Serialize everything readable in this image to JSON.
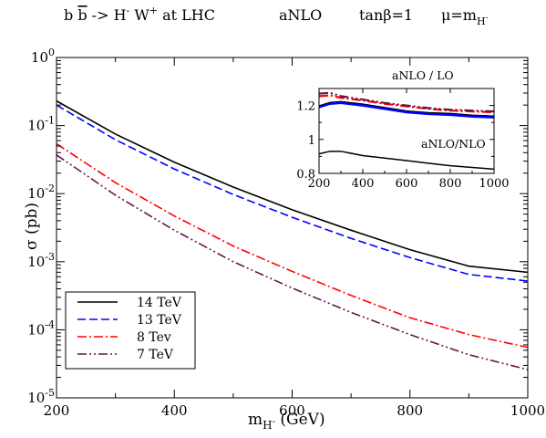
{
  "chart_data": {
    "type": "line",
    "title_parts": [
      {
        "base": "b ",
        "sup": ""
      },
      {
        "base": "b",
        "sup": "",
        "overline": true
      },
      {
        "base": " -> H",
        "sup": "-"
      },
      {
        "base": " W",
        "sup": "+"
      },
      {
        "base": "  at LHC",
        "sup": ""
      }
    ],
    "title_items": [
      "aNLO",
      "tanβ=1"
    ],
    "title_mu": {
      "base": "μ=m",
      "sub": "H",
      "subsup": "-"
    },
    "xlabel": {
      "base": "m",
      "sub": "H",
      "subsup": "-",
      "rest": " (GeV)"
    },
    "ylabel": "σ (pb)",
    "xlim": [
      200,
      1000
    ],
    "ylim": [
      1e-05,
      1
    ],
    "yscale": "log",
    "x_ticks": [
      "200",
      "400",
      "600",
      "800",
      "1000"
    ],
    "y_ticks": [
      {
        "base": "10",
        "exp": "-5"
      },
      {
        "base": "10",
        "exp": "-4"
      },
      {
        "base": "10",
        "exp": "-3"
      },
      {
        "base": "10",
        "exp": "-2"
      },
      {
        "base": "10",
        "exp": "-1"
      },
      {
        "base": "10",
        "exp": "0"
      }
    ],
    "legend_position": "bottom-left",
    "series": [
      {
        "name": "14 TeV",
        "color": "#000000",
        "dash": "solid",
        "x": [
          200,
          300,
          400,
          500,
          600,
          700,
          800,
          900,
          1000
        ],
        "y": [
          0.23,
          0.075,
          0.029,
          0.0125,
          0.0058,
          0.0029,
          0.0015,
          0.00086,
          0.0007
        ]
      },
      {
        "name": "13 TeV",
        "color": "#0000ff",
        "dash": "dashed",
        "x": [
          200,
          300,
          400,
          500,
          600,
          700,
          800,
          900,
          1000
        ],
        "y": [
          0.2,
          0.062,
          0.023,
          0.0097,
          0.0045,
          0.0022,
          0.00115,
          0.00065,
          0.00052
        ]
      },
      {
        "name": "8 Tev",
        "color": "#ff0000",
        "dash": "dash-dot",
        "x": [
          200,
          300,
          400,
          500,
          600,
          700,
          800,
          900,
          1000
        ],
        "y": [
          0.054,
          0.0145,
          0.0047,
          0.0017,
          0.00072,
          0.00032,
          0.00015,
          8.5e-05,
          5.5e-05
        ]
      },
      {
        "name": "7 TeV",
        "color": "#66164a",
        "dash": "dash-dot-dot",
        "x": [
          200,
          300,
          400,
          500,
          600,
          700,
          800,
          900,
          1000
        ],
        "y": [
          0.037,
          0.0095,
          0.0029,
          0.001,
          0.00041,
          0.00018,
          8.5e-05,
          4.3e-05,
          2.6e-05
        ]
      }
    ],
    "inset": {
      "xlim": [
        200,
        1000
      ],
      "ylim": [
        0.8,
        1.3
      ],
      "x_ticks": [
        "200",
        "400",
        "600",
        "800",
        "1000"
      ],
      "y_ticks": [
        "0.8",
        "1",
        "1.2"
      ],
      "annotations": [
        "aNLO / LO",
        "aNLO/NLO"
      ],
      "series": [
        {
          "group": "aNLO / LO",
          "color": "#ff0000",
          "dash": "dash-dot",
          "width": 2.2,
          "x": [
            200,
            250,
            300,
            400,
            500,
            600,
            700,
            800,
            900,
            1000
          ],
          "y": [
            1.255,
            1.26,
            1.245,
            1.23,
            1.21,
            1.195,
            1.18,
            1.17,
            1.165,
            1.16
          ]
        },
        {
          "group": "aNLO / LO",
          "color": "#66164a",
          "dash": "dash-dot-dot",
          "width": 2.2,
          "x": [
            200,
            250,
            300,
            400,
            500,
            600,
            700,
            800,
            900,
            1000
          ],
          "y": [
            1.27,
            1.275,
            1.255,
            1.235,
            1.215,
            1.2,
            1.185,
            1.175,
            1.17,
            1.165
          ]
        },
        {
          "group": "aNLO / LO",
          "color": "#000000",
          "dash": "solid",
          "width": 2.5,
          "x": [
            200,
            250,
            300,
            400,
            500,
            600,
            700,
            800,
            900,
            1000
          ],
          "y": [
            1.195,
            1.215,
            1.22,
            1.205,
            1.185,
            1.165,
            1.155,
            1.15,
            1.14,
            1.135
          ]
        },
        {
          "group": "aNLO / LO",
          "color": "#0000ff",
          "dash": "solid",
          "width": 2.5,
          "x": [
            200,
            250,
            300,
            400,
            500,
            600,
            700,
            800,
            900,
            1000
          ],
          "y": [
            1.19,
            1.21,
            1.215,
            1.2,
            1.18,
            1.16,
            1.15,
            1.145,
            1.135,
            1.13
          ]
        },
        {
          "group": "aNLO/NLO",
          "color": "#000000",
          "dash": "solid",
          "width": 1.5,
          "x": [
            200,
            250,
            300,
            400,
            500,
            600,
            700,
            800,
            900,
            1000
          ],
          "y": [
            0.915,
            0.93,
            0.93,
            0.905,
            0.89,
            0.875,
            0.86,
            0.845,
            0.835,
            0.825
          ]
        }
      ]
    }
  }
}
